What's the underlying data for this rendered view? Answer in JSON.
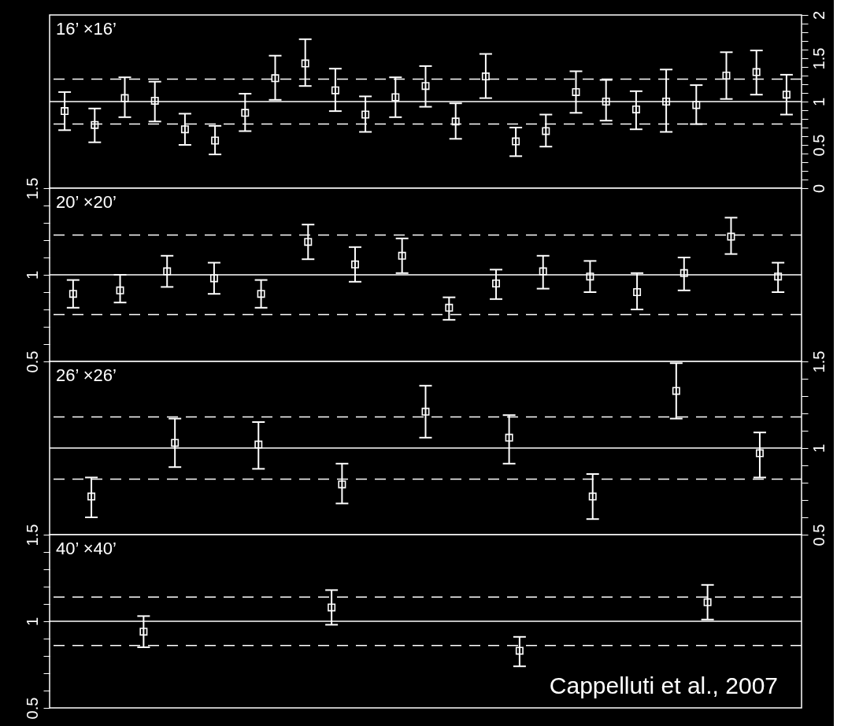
{
  "chart_data": [
    {
      "type": "scatter",
      "title": "16’ ×16’",
      "color": "#ffffff",
      "marker": "square",
      "tick_labels": "y",
      "categories": [
        null,
        null,
        null,
        null,
        null,
        null,
        null,
        null,
        null,
        null,
        null,
        null,
        null,
        null,
        null,
        null,
        null,
        null,
        null,
        null,
        null,
        null,
        null,
        null,
        null
      ],
      "values": [
        0.89,
        0.73,
        1.04,
        1.01,
        0.68,
        0.55,
        0.87,
        1.27,
        1.44,
        1.13,
        0.85,
        1.05,
        1.18,
        0.77,
        1.29,
        0.54,
        0.66,
        1.11,
        1.0,
        0.91,
        1.0,
        0.96,
        1.3,
        1.34,
        1.08
      ],
      "errors": [
        [
          0.67,
          1.11
        ],
        [
          0.53,
          0.92
        ],
        [
          0.82,
          1.28
        ],
        [
          0.77,
          1.23
        ],
        [
          0.5,
          0.86
        ],
        [
          0.39,
          0.72
        ],
        [
          0.66,
          1.09
        ],
        [
          1.02,
          1.53
        ],
        [
          1.18,
          1.72
        ],
        [
          0.89,
          1.38
        ],
        [
          0.65,
          1.06
        ],
        [
          0.82,
          1.28
        ],
        [
          0.94,
          1.41
        ],
        [
          0.57,
          0.98
        ],
        [
          1.04,
          1.55
        ],
        [
          0.37,
          0.7
        ],
        [
          0.48,
          0.85
        ],
        [
          0.87,
          1.35
        ],
        [
          0.78,
          1.25
        ],
        [
          0.68,
          1.12
        ],
        [
          0.65,
          1.37
        ],
        [
          0.74,
          1.19
        ],
        [
          1.03,
          1.57
        ],
        [
          1.08,
          1.59
        ],
        [
          0.85,
          1.31
        ]
      ],
      "ylim": [
        0,
        2
      ],
      "yticks": [
        0,
        {
          "value": 0.1,
          "label": null
        },
        {
          "value": 0.2,
          "label": null
        },
        {
          "value": 0.3,
          "label": null
        },
        {
          "value": 0.4,
          "label": null
        },
        0.5,
        {
          "value": 0.6,
          "label": null
        },
        {
          "value": 0.7,
          "label": null
        },
        {
          "value": 0.8,
          "label": null
        },
        {
          "value": 0.9,
          "label": null
        },
        1,
        {
          "value": 1.1,
          "label": null
        },
        {
          "value": 1.2,
          "label": null
        },
        {
          "value": 1.3,
          "label": null
        },
        {
          "value": 1.4,
          "label": null
        },
        1.5,
        {
          "value": 1.6,
          "label": null
        },
        {
          "value": 1.7,
          "label": null
        },
        {
          "value": 1.8,
          "label": null
        },
        {
          "value": 1.9,
          "label": null
        },
        2
      ],
      "ref_lines": [
        {
          "axis": "y",
          "value": 1,
          "color": "#ffffff",
          "line_style": "solid"
        },
        {
          "axis": "y",
          "value": 1.26,
          "color": "#ffffff",
          "line_style": "dashed"
        },
        {
          "axis": "y",
          "value": 0.74,
          "color": "#ffffff",
          "line_style": "dashed"
        }
      ]
    },
    {
      "type": "scatter",
      "title": "20’ ×20’",
      "color": "#ffffff",
      "marker": "square",
      "tick_labels": "y",
      "categories": [
        null,
        null,
        null,
        null,
        null,
        null,
        null,
        null,
        null,
        null,
        null,
        null,
        null,
        null,
        null,
        null
      ],
      "values": [
        0.89,
        0.91,
        1.02,
        0.98,
        0.89,
        1.19,
        1.06,
        1.11,
        0.81,
        0.95,
        1.02,
        0.99,
        0.9,
        1.01,
        1.22,
        0.99
      ],
      "errors": [
        [
          0.81,
          0.97
        ],
        [
          0.84,
          1.0
        ],
        [
          0.93,
          1.11
        ],
        [
          0.89,
          1.07
        ],
        [
          0.81,
          0.97
        ],
        [
          1.09,
          1.29
        ],
        [
          0.96,
          1.16
        ],
        [
          1.01,
          1.21
        ],
        [
          0.74,
          0.87
        ],
        [
          0.86,
          1.03
        ],
        [
          0.92,
          1.11
        ],
        [
          0.9,
          1.08
        ],
        [
          0.8,
          1.01
        ],
        [
          0.91,
          1.1
        ],
        [
          1.12,
          1.33
        ],
        [
          0.9,
          1.07
        ]
      ],
      "ylim": [
        0.5,
        1.5
      ],
      "yticks": [
        0.5,
        {
          "value": 0.6,
          "label": null
        },
        {
          "value": 0.7,
          "label": null
        },
        {
          "value": 0.8,
          "label": null
        },
        {
          "value": 0.9,
          "label": null
        },
        1,
        {
          "value": 1.1,
          "label": null
        },
        {
          "value": 1.2,
          "label": null
        },
        {
          "value": 1.3,
          "label": null
        },
        {
          "value": 1.4,
          "label": null
        },
        1.5
      ],
      "ref_lines": [
        {
          "axis": "y",
          "value": 1,
          "color": "#ffffff",
          "line_style": "solid"
        },
        {
          "axis": "y",
          "value": 1.23,
          "color": "#ffffff",
          "line_style": "dashed"
        },
        {
          "axis": "y",
          "value": 0.77,
          "color": "#ffffff",
          "line_style": "dashed"
        }
      ]
    },
    {
      "type": "scatter",
      "title": "26’ ×26’",
      "color": "#ffffff",
      "marker": "square",
      "tick_labels": "y",
      "categories": [
        null,
        null,
        null,
        null,
        null,
        null,
        null,
        null,
        null
      ],
      "values": [
        0.72,
        1.03,
        1.02,
        0.79,
        1.21,
        1.06,
        0.72,
        1.33,
        0.97
      ],
      "errors": [
        [
          0.6,
          0.83
        ],
        [
          0.89,
          1.17
        ],
        [
          0.88,
          1.15
        ],
        [
          0.68,
          0.91
        ],
        [
          1.06,
          1.36
        ],
        [
          0.91,
          1.19
        ],
        [
          0.59,
          0.85
        ],
        [
          1.17,
          1.49
        ],
        [
          0.83,
          1.09
        ]
      ],
      "ylim": [
        0.5,
        1.5
      ],
      "yticks": [
        0.5,
        {
          "value": 0.6,
          "label": null
        },
        {
          "value": 0.7,
          "label": null
        },
        {
          "value": 0.8,
          "label": null
        },
        {
          "value": 0.9,
          "label": null
        },
        1,
        {
          "value": 1.1,
          "label": null
        },
        {
          "value": 1.2,
          "label": null
        },
        {
          "value": 1.3,
          "label": null
        },
        {
          "value": 1.4,
          "label": null
        },
        1.5
      ],
      "ref_lines": [
        {
          "axis": "y",
          "value": 1,
          "color": "#ffffff",
          "line_style": "solid"
        },
        {
          "axis": "y",
          "value": 1.18,
          "color": "#ffffff",
          "line_style": "dashed"
        },
        {
          "axis": "y",
          "value": 0.82,
          "color": "#ffffff",
          "line_style": "dashed"
        }
      ]
    },
    {
      "type": "scatter",
      "title": "40’ ×40’",
      "color": "#ffffff",
      "marker": "square",
      "tick_labels": "y",
      "categories": [
        null,
        null,
        null,
        null
      ],
      "values": [
        0.94,
        1.08,
        0.83,
        1.11
      ],
      "errors": [
        [
          0.85,
          1.03
        ],
        [
          0.98,
          1.18
        ],
        [
          0.74,
          0.91
        ],
        [
          1.01,
          1.21
        ]
      ],
      "ylim": [
        0.5,
        1.5
      ],
      "yticks": [
        0.5,
        {
          "value": 0.6,
          "label": null
        },
        {
          "value": 0.7,
          "label": null
        },
        {
          "value": 0.8,
          "label": null
        },
        {
          "value": 0.9,
          "label": null
        },
        1,
        {
          "value": 1.1,
          "label": null
        },
        {
          "value": 1.2,
          "label": null
        },
        {
          "value": 1.3,
          "label": null
        },
        {
          "value": 1.4,
          "label": null
        },
        1.5
      ],
      "ref_lines": [
        {
          "axis": "y",
          "value": 1,
          "color": "#ffffff",
          "line_style": "solid"
        },
        {
          "axis": "y",
          "value": 1.14,
          "color": "#ffffff",
          "line_style": "dashed"
        },
        {
          "axis": "y",
          "value": 0.86,
          "color": "#ffffff",
          "line_style": "dashed"
        }
      ],
      "annotations": [
        "Cappelluti et al., 2007"
      ]
    }
  ]
}
